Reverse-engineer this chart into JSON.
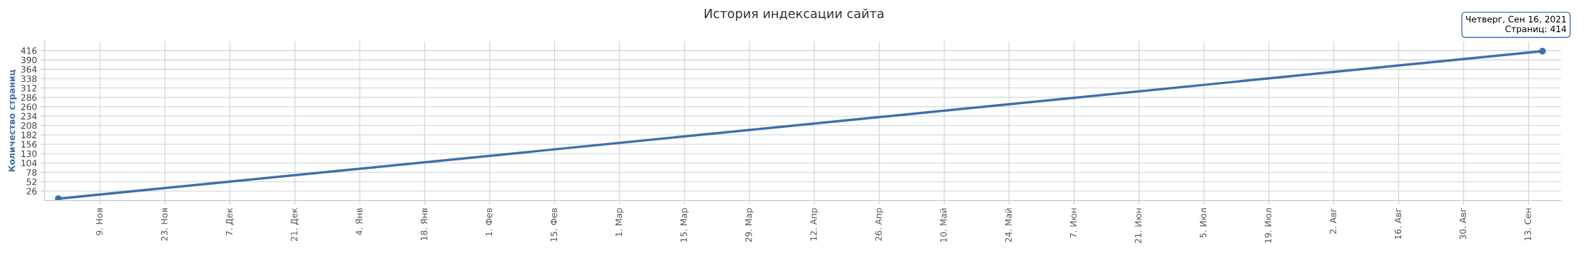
{
  "chart_data": {
    "type": "line",
    "title": "История индексации сайта",
    "ylabel": "Количество страниц",
    "x": [
      "2020-10-31",
      "2021-09-16"
    ],
    "series": [
      {
        "color": "#4070a8",
        "values": [
          5,
          414
        ]
      }
    ],
    "xlim": [
      "2020-10-28",
      "2021-09-20"
    ],
    "xticks": [
      {
        "value": "2020-11-09",
        "label": "9. Ноя"
      },
      {
        "value": "2020-11-23",
        "label": "23. Ноя"
      },
      {
        "value": "2020-12-07",
        "label": "7. Дек"
      },
      {
        "value": "2020-12-21",
        "label": "21. Дек"
      },
      {
        "value": "2021-01-04",
        "label": "4. Янв"
      },
      {
        "value": "2021-01-18",
        "label": "18. Янв"
      },
      {
        "value": "2021-02-01",
        "label": "1. Фев"
      },
      {
        "value": "2021-02-15",
        "label": "15. Фев"
      },
      {
        "value": "2021-03-01",
        "label": "1. Мар"
      },
      {
        "value": "2021-03-15",
        "label": "15. Мар"
      },
      {
        "value": "2021-03-29",
        "label": "29. Мар"
      },
      {
        "value": "2021-04-12",
        "label": "12. Апр"
      },
      {
        "value": "2021-04-26",
        "label": "26. Апр"
      },
      {
        "value": "2021-05-10",
        "label": "10. Май"
      },
      {
        "value": "2021-05-24",
        "label": "24. Май"
      },
      {
        "value": "2021-06-07",
        "label": "7. Июн"
      },
      {
        "value": "2021-06-21",
        "label": "21. Июн"
      },
      {
        "value": "2021-07-05",
        "label": "5. Июл"
      },
      {
        "value": "2021-07-19",
        "label": "19. Июл"
      },
      {
        "value": "2021-08-02",
        "label": "2. Авг"
      },
      {
        "value": "2021-08-16",
        "label": "16. Авг"
      },
      {
        "value": "2021-08-30",
        "label": "30. Авг"
      },
      {
        "value": "2021-09-13",
        "label": "13. Сен"
      }
    ],
    "ylim": [
      0,
      442
    ],
    "yticks": [
      26,
      52,
      78,
      104,
      130,
      156,
      182,
      208,
      234,
      260,
      286,
      312,
      338,
      364,
      390,
      416
    ],
    "grid": true,
    "marker": "circle",
    "line_style": "solid",
    "annotations": [
      {
        "text": "Четверг, Сен 16, 2021\nСтраниц: 414",
        "x": "2021-09-16",
        "y": 414
      }
    ]
  }
}
